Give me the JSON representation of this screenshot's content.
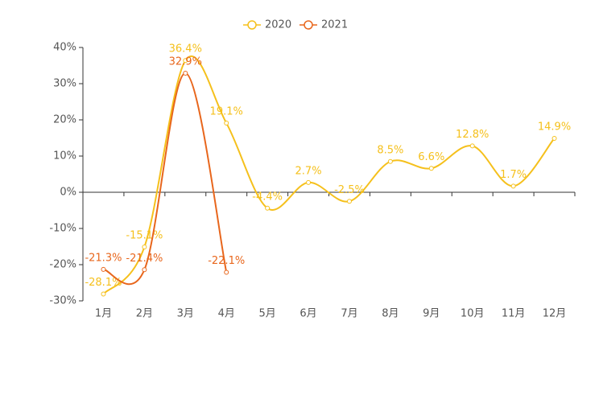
{
  "chart_data": {
    "type": "line",
    "categories": [
      "1月",
      "2月",
      "3月",
      "4月",
      "5月",
      "6月",
      "7月",
      "8月",
      "9月",
      "10月",
      "11月",
      "12月"
    ],
    "series": [
      {
        "name": "2020",
        "color": "#f5c01c",
        "values": [
          -28.1,
          -15.1,
          36.4,
          19.1,
          -4.4,
          2.7,
          -2.5,
          8.5,
          6.6,
          12.8,
          1.7,
          14.9
        ],
        "value_labels": [
          "-28.1%",
          "-15.1%",
          "36.4%",
          "19.1%",
          "-4.4%",
          "2.7%",
          "-2.5%",
          "8.5%",
          "6.6%",
          "12.8%",
          "1.7%",
          "14.9%"
        ]
      },
      {
        "name": "2021",
        "color": "#e8661c",
        "values": [
          -21.3,
          -21.4,
          32.9,
          -22.1,
          null,
          null,
          null,
          null,
          null,
          null,
          null,
          null
        ],
        "value_labels": [
          "-21.3%",
          "-21.4%",
          "32.9%",
          "-22.1%",
          null,
          null,
          null,
          null,
          null,
          null,
          null,
          null
        ]
      }
    ],
    "ylim": [
      -30,
      40
    ],
    "yticks": [
      {
        "value": -30,
        "label": "-30%"
      },
      {
        "value": -20,
        "label": "-20%"
      },
      {
        "value": -10,
        "label": "-10%"
      },
      {
        "value": 0,
        "label": "0%"
      },
      {
        "value": 10,
        "label": "10%"
      },
      {
        "value": 20,
        "label": "20%"
      },
      {
        "value": 30,
        "label": "30%"
      },
      {
        "value": 40,
        "label": "40%"
      }
    ],
    "smooth": true,
    "legend": "top"
  }
}
